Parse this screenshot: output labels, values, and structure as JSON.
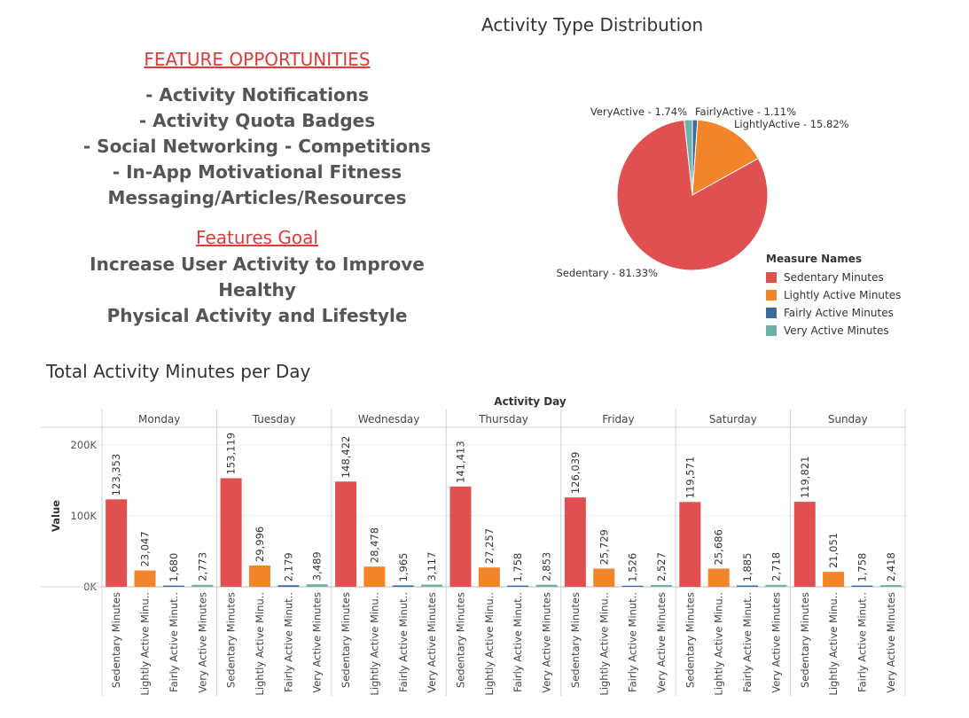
{
  "features": {
    "heading": "FEATURE OPPORTUNITIES",
    "items": [
      "- Activity Notifications",
      "- Activity Quota Badges",
      "- Social Networking - Competitions",
      "- In-App Motivational Fitness",
      "Messaging/Articles/Resources"
    ],
    "goal_heading": "Features Goal",
    "goal_lines": [
      "Increase User Activity to Improve Healthy",
      "Physical Activity and Lifestyle"
    ]
  },
  "chart_data": [
    {
      "type": "pie",
      "title": "Activity Type Distribution",
      "slices": [
        {
          "label": "Sedentary - 81.33%",
          "value": 81.33,
          "color": "#e05050"
        },
        {
          "label": "LightlyActive - 15.82%",
          "value": 15.82,
          "color": "#f2852a"
        },
        {
          "label": "FairlyActive - 1.11%",
          "value": 1.11,
          "color": "#3a6aa0"
        },
        {
          "label": "VeryActive - 1.74%",
          "value": 1.74,
          "color": "#6fb0aa"
        }
      ],
      "legend_title": "Measure Names",
      "legend": [
        {
          "name": "Sedentary Minutes",
          "color": "#e05050"
        },
        {
          "name": "Lightly Active Minutes",
          "color": "#f2852a"
        },
        {
          "name": "Fairly Active Minutes",
          "color": "#3a6aa0"
        },
        {
          "name": "Very Active Minutes",
          "color": "#6fb0aa"
        }
      ],
      "legend_position": "bottom-right"
    },
    {
      "type": "bar",
      "title": "Total Activity Minutes per Day",
      "column_header": "Activity Day",
      "ylabel": "Value",
      "ylim": [
        0,
        200000
      ],
      "yticks": [
        {
          "value": 0,
          "label": "0K"
        },
        {
          "value": 100000,
          "label": "100K"
        },
        {
          "value": 200000,
          "label": "200K"
        }
      ],
      "category_labels": [
        "Sedentary Minutes",
        "Lightly Active Minu..",
        "Fairly Active Minut..",
        "Very Active Minutes"
      ],
      "colors": [
        "#e05050",
        "#f2852a",
        "#3a6aa0",
        "#6fb0aa"
      ],
      "groups": [
        {
          "day": "Monday",
          "values": [
            123353,
            23047,
            1680,
            2773
          ],
          "labels": [
            "123,353",
            "23,047",
            "1,680",
            "2,773"
          ]
        },
        {
          "day": "Tuesday",
          "values": [
            153119,
            29996,
            2179,
            3489
          ],
          "labels": [
            "153,119",
            "29,996",
            "2,179",
            "3,489"
          ]
        },
        {
          "day": "Wednesday",
          "values": [
            148422,
            28478,
            1965,
            3117
          ],
          "labels": [
            "148,422",
            "28,478",
            "1,965",
            "3,117"
          ]
        },
        {
          "day": "Thursday",
          "values": [
            141413,
            27257,
            1758,
            2853
          ],
          "labels": [
            "141,413",
            "27,257",
            "1,758",
            "2,853"
          ]
        },
        {
          "day": "Friday",
          "values": [
            126039,
            25729,
            1526,
            2527
          ],
          "labels": [
            "126,039",
            "25,729",
            "1,526",
            "2,527"
          ]
        },
        {
          "day": "Saturday",
          "values": [
            119571,
            25686,
            1885,
            2718
          ],
          "labels": [
            "119,571",
            "25,686",
            "1,885",
            "2,718"
          ]
        },
        {
          "day": "Sunday",
          "values": [
            119821,
            21051,
            1758,
            2418
          ],
          "labels": [
            "119,821",
            "21,051",
            "1,758",
            "2,418"
          ]
        }
      ],
      "grid": true
    }
  ]
}
